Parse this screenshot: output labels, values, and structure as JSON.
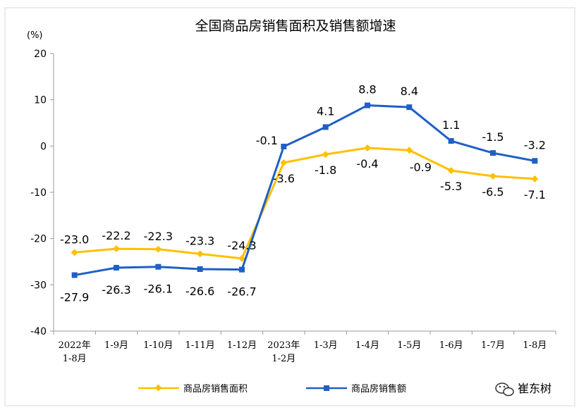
{
  "chart_data": {
    "type": "line",
    "title": "全国商品房销售面积及销售额增速",
    "ylabel": "(%)",
    "ylim": [
      -40,
      20
    ],
    "yticks": [
      20,
      10,
      0,
      -10,
      -20,
      -30,
      -40
    ],
    "categories": [
      [
        "2022年",
        "1-8月"
      ],
      [
        "1-9月"
      ],
      [
        "1-10月"
      ],
      [
        "1-11月"
      ],
      [
        "1-12月"
      ],
      [
        "2023年",
        "1-2月"
      ],
      [
        "1-3月"
      ],
      [
        "1-4月"
      ],
      [
        "1-5月"
      ],
      [
        "1-6月"
      ],
      [
        "1-7月"
      ],
      [
        "1-8月"
      ]
    ],
    "series": [
      {
        "name": "商品房销售面积",
        "color": "#FFC000",
        "marker": "diamond",
        "values": [
          -23.0,
          -22.2,
          -22.3,
          -23.3,
          -24.3,
          -3.6,
          -1.8,
          -0.4,
          -0.9,
          -5.3,
          -6.5,
          -7.1
        ],
        "labels": [
          "-23.0",
          "-22.2",
          "-22.3",
          "-23.3",
          "-24.3",
          "-3.6",
          "-1.8",
          "-0.4",
          "-0.9",
          "-5.3",
          "-6.5",
          "-7.1"
        ]
      },
      {
        "name": "商品房销售额",
        "color": "#1F5FC6",
        "marker": "square",
        "values": [
          -27.9,
          -26.3,
          -26.1,
          -26.6,
          -26.7,
          -0.1,
          4.1,
          8.8,
          8.4,
          1.1,
          -1.5,
          -3.2
        ],
        "labels": [
          "-27.9",
          "-26.3",
          "-26.1",
          "-26.6",
          "-26.7",
          "-0.1",
          "4.1",
          "8.8",
          "8.4",
          "1.1",
          "-1.5",
          "-3.2"
        ]
      }
    ],
    "legend": "bottom",
    "grid": false
  },
  "watermark": {
    "text": "崔东树",
    "icon": "wechat-icon"
  }
}
